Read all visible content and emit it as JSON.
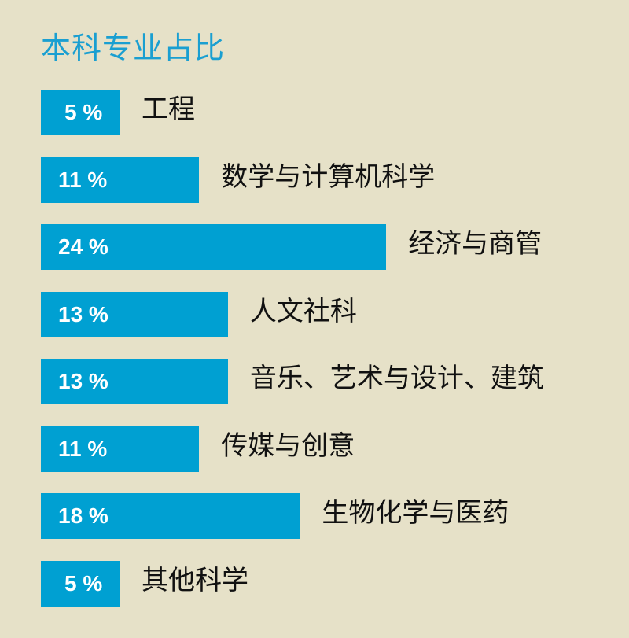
{
  "chart_data": {
    "type": "bar",
    "orientation": "horizontal",
    "title": "本科专业占比",
    "categories": [
      "工程",
      "数学与计算机科学",
      "经济与商管",
      "人文社科",
      "音乐、艺术与设计、建筑",
      "传媒与创意",
      "生物化学与医药",
      "其他科学"
    ],
    "values": [
      5,
      11,
      24,
      13,
      13,
      11,
      18,
      5
    ],
    "value_labels": [
      "5 %",
      "11 %",
      "24 %",
      "13 %",
      "13 %",
      "11 %",
      "18 %",
      "5 %"
    ],
    "unit": "%",
    "grid": false,
    "legend": "none",
    "colors": {
      "bar": "#00a0d2",
      "title": "#1a9fd1",
      "background": "#e6e1c8"
    }
  }
}
